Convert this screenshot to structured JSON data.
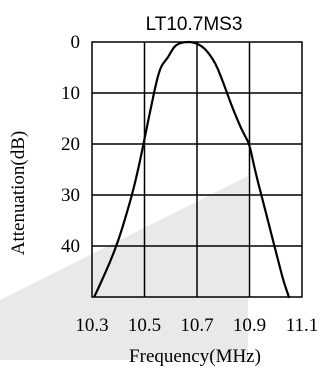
{
  "chart_data": {
    "type": "line",
    "title": "LT10.7MS3",
    "xlabel": "Frequency(MHz)",
    "ylabel": "Attenuation(dB)",
    "x_ticks": [
      "10.3",
      "10.5",
      "10.7",
      "10.9",
      "11.1"
    ],
    "y_ticks": [
      "0",
      "10",
      "20",
      "30",
      "40"
    ],
    "xlim": [
      10.3,
      11.1
    ],
    "ylim": [
      0,
      50
    ],
    "y_inverted": true,
    "grid": true,
    "series": [
      {
        "x": [
          10.31,
          10.34,
          10.37,
          10.4,
          10.43,
          10.46,
          10.48,
          10.5,
          10.52,
          10.54,
          10.56,
          10.58,
          10.59,
          10.6,
          10.61,
          10.62,
          10.64,
          10.66,
          10.68,
          10.7,
          10.72,
          10.74,
          10.76,
          10.78,
          10.8,
          10.82,
          10.84,
          10.86,
          10.88,
          10.9,
          10.92,
          10.95,
          10.98,
          11.01,
          11.03,
          11.05
        ],
        "values": [
          49.8,
          46.5,
          43,
          39,
          34,
          28.5,
          24,
          19,
          14,
          9,
          5,
          3.6,
          3,
          2,
          1.2,
          0.6,
          0.1,
          0,
          0,
          0.3,
          0.9,
          1.9,
          3.3,
          5.3,
          8,
          10.8,
          13.5,
          16,
          18.2,
          20,
          25,
          31,
          37,
          43,
          47,
          50
        ]
      }
    ]
  }
}
